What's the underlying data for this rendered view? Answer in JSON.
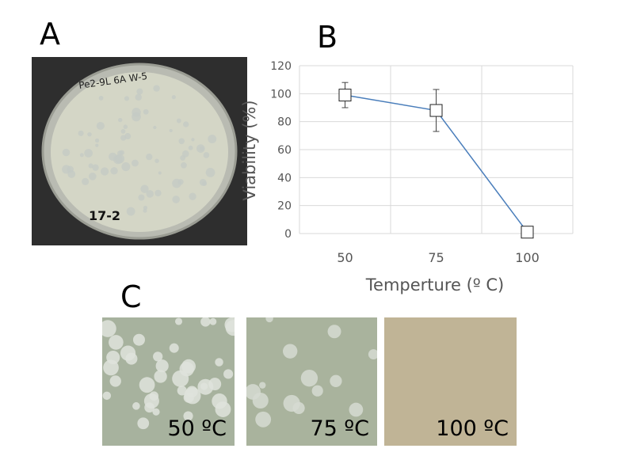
{
  "panels": {
    "a": "A",
    "b": "B",
    "c": "C"
  },
  "colors": {
    "series": "#4a7ebb",
    "grid": "#d9d9d9",
    "plate_agar": "#d4d6c6",
    "colony": "#c4cac4"
  },
  "plate_markings": {
    "top": "Pe2-9L  6A   W-5",
    "bottom": "17-2"
  },
  "tiles": [
    {
      "label": "50 ºC",
      "color": "#a7b29e"
    },
    {
      "label": "75 ºC",
      "color": "#a9b39d"
    },
    {
      "label": "100 ºC",
      "color": "#c0b496"
    }
  ],
  "chart_data": {
    "type": "line",
    "categories": [
      "50",
      "75",
      "100"
    ],
    "series": [
      {
        "values": [
          99,
          88,
          1
        ],
        "error": [
          9,
          15,
          0
        ]
      }
    ],
    "yticks": [
      0,
      20,
      40,
      60,
      80,
      100,
      120
    ],
    "ylim": [
      0,
      120
    ],
    "xlabel": "Temperture (º C)",
    "ylabel": "Viability (%)",
    "grid": true,
    "marker": "square-open"
  }
}
